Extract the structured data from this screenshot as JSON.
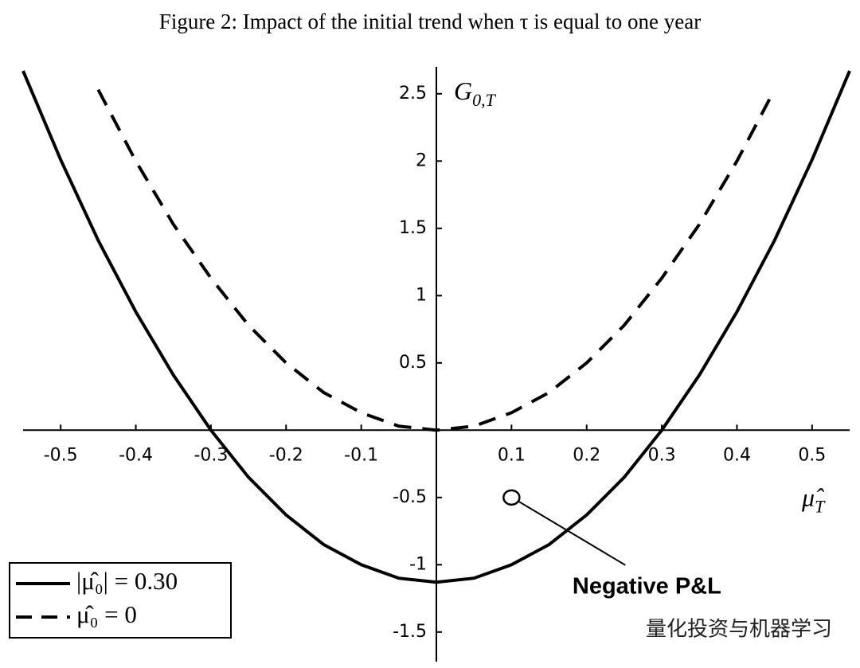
{
  "chart_data": {
    "type": "line",
    "title": "Figure 2: Impact of the initial trend when τ is equal to one year",
    "x": [
      -0.55,
      -0.5,
      -0.45,
      -0.4,
      -0.35,
      -0.3,
      -0.25,
      -0.2,
      -0.15,
      -0.1,
      -0.05,
      0,
      0.05,
      0.1,
      0.15,
      0.2,
      0.25,
      0.3,
      0.35,
      0.4,
      0.45,
      0.5,
      0.55
    ],
    "series": [
      {
        "name": "|μ̂₀| = 0.30",
        "color": "#000000",
        "dash": false,
        "values": [
          2.67,
          2.01,
          1.41,
          0.88,
          0.41,
          0,
          -0.35,
          -0.63,
          -0.85,
          -1.0,
          -1.1,
          -1.13,
          -1.1,
          -1.0,
          -0.85,
          -0.63,
          -0.35,
          0,
          0.41,
          0.88,
          1.41,
          2.01,
          2.67
        ]
      },
      {
        "name": "μ̂₀ = 0",
        "color": "#000000",
        "dash": true,
        "values": [
          null,
          null,
          2.53,
          2.0,
          1.53,
          1.13,
          0.78,
          0.5,
          0.28,
          0.13,
          0.03,
          0,
          0.03,
          0.13,
          0.28,
          0.5,
          0.78,
          1.13,
          1.53,
          2.0,
          2.53,
          null,
          null
        ]
      }
    ],
    "xlim": [
      -0.55,
      0.55
    ],
    "ylim": [
      -1.72,
      2.7
    ],
    "xticks": [
      -0.5,
      -0.4,
      -0.3,
      -0.2,
      -0.1,
      0.1,
      0.2,
      0.3,
      0.4,
      0.5
    ],
    "yticks": [
      2.5,
      2,
      1.5,
      1,
      0.5,
      -0.5,
      -1,
      -1.5
    ],
    "xlabel": {
      "main": "μ̂",
      "sub": "T"
    },
    "ylabel": {
      "main": "G",
      "sub": "0,T"
    },
    "annotation": {
      "text": "Negative P&L",
      "x": 0.1,
      "y": -0.5
    },
    "legend": "bottom-left",
    "watermark": "量化投资与机器学习"
  }
}
